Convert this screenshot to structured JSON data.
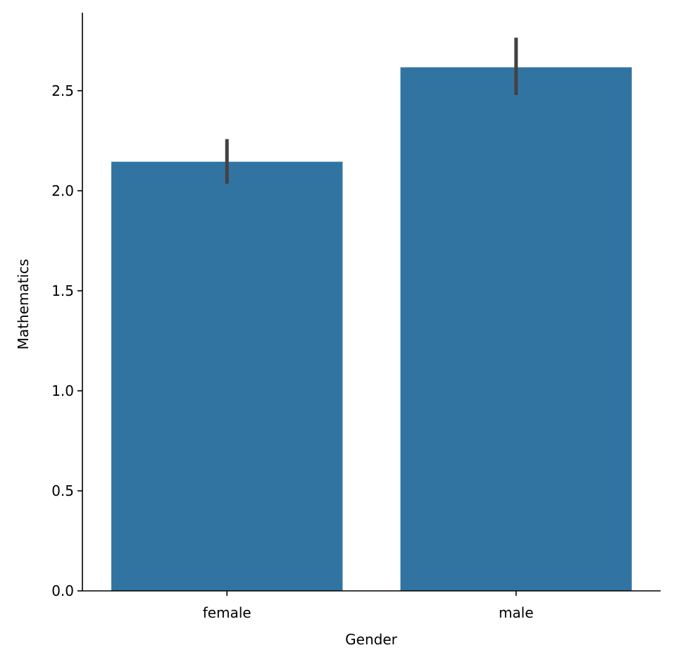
{
  "chart_data": {
    "type": "bar",
    "title": "",
    "xlabel": "Gender",
    "ylabel": "Mathematics",
    "categories": [
      "female",
      "male"
    ],
    "series": [
      {
        "values": [
          2.145,
          2.617
        ],
        "error_low": [
          2.035,
          2.478
        ],
        "error_high": [
          2.258,
          2.765
        ]
      }
    ],
    "ylim": [
      0,
      2.89
    ],
    "yticks": [
      0.0,
      0.5,
      1.0,
      1.5,
      2.0,
      2.5
    ],
    "ytick_labels": [
      "0.0",
      "0.5",
      "1.0",
      "1.5",
      "2.0",
      "2.5"
    ],
    "grid": false,
    "legend": "none",
    "colors": {
      "bar": "#3274a1",
      "errorbar": "#424242"
    }
  }
}
